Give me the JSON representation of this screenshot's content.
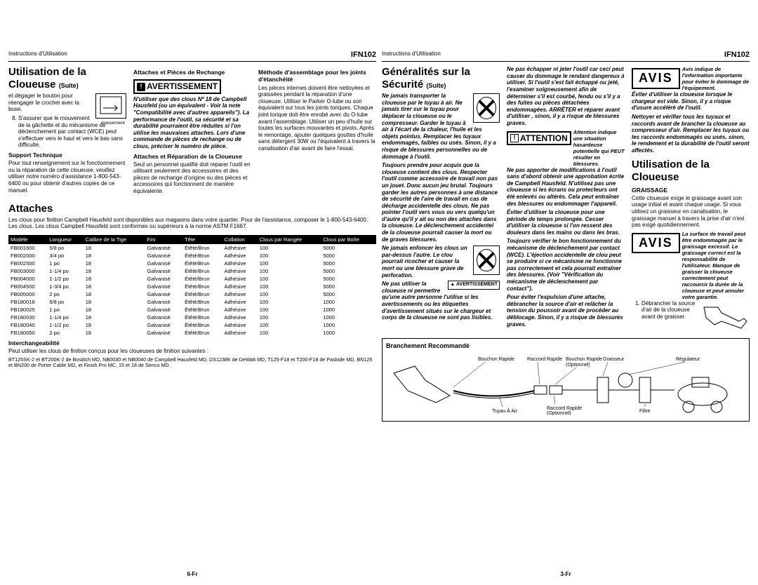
{
  "header": {
    "instructions_label": "Instructions d'Utilisation",
    "model": "IFN102"
  },
  "left_page": {
    "footer": "6-Fr",
    "section1_title": "Utilisation de la",
    "section1_title2": "Cloueuse",
    "suite": "(Suite)",
    "step7_part": "et dégager le bouton pour réengager le crochet avec la buse.",
    "step8": "S'assurer que le mouvement de la gâchette et du mécanisme de déclenchement par contact (WCE) peut s'effectuer vers le haut et vers le bas sans difficulté.",
    "movement_label": "mouvement",
    "support_title": "Support Technique",
    "support_body": "Pour tout renseignement sur le fonctionnement ou la réparation de cette cloueuse, veuillez utiliser notre numéro d'assistance 1-800-543-6400 ou pour obtenir d'autres copies de ce manuel.",
    "attaches_title": "Attaches et Pièces de Rechange",
    "avert_label": "AVERTISSEMENT",
    "attaches_warn": "N'utiliser que des clous Nº 18 de Campbell Hausfeld (ou un équivalent - Voir la note \"Compatibilité avec d'autres appareils\"). La performance de l'outil, sa sécurité et sa durabilité pourraient être réduites si l'on utilise les mauvaises attaches. Lors d'une commande de pièces de rechange ou de clous, préciser le numéro de pièce.",
    "repair_title": "Attaches et Réparation de la Cloueuse",
    "repair_body": "Seul un personnel qualifié doit réparer l'outil en utilisant seulement des accessoires et des pièces de rechange d'origine ou des pièces et accessoires qui fonctionnent de manière équivalente.",
    "methode_title": "Méthode d'assemblage pour les joints d'étanchéité",
    "methode_body": "Les pièces internes doivent être nettoyées et graissées pendant la réparation d'une cloueuse. Utiliser le Parker O-lube ou son équivalent sur tous les joints toriques. Chaque joint torique doit être enrobé avec du O-lube avant l'assemblage. Utiliser un peu d'huile sur toutes les surfaces mouvantes et pivots. Après le remontage, ajouter quelques gouttes d'huile sans détergent 30W ou l'équivalent à travers la canalisation d'air avant de faire l'essai.",
    "attaches_section": "Attaches",
    "attaches_intro": "Les clous pour finition Campbell Hausfeld sont disponibles aux magasins dans votre quartier. Pour de l'assistance, composer le 1-800-543-6400. Les clous. Les clous Campbell Hausfeld sont conformes ou supérieurs à la norme ASTM F1667.",
    "table": {
      "headers": [
        "Modèle",
        "Longueur",
        "Calibre de la Tige",
        "Fini",
        "Tête",
        "Collation",
        "Clous par Rangée",
        "Clous par Boîte"
      ],
      "rows": [
        [
          "FB001600",
          "5/8 po",
          "18",
          "Galvanisé",
          "Étêté/Brun",
          "Adhésive",
          "100",
          "5000"
        ],
        [
          "FB002000",
          "3/4 po",
          "18",
          "Galvanisé",
          "Étêté/Brun",
          "Adhésive",
          "100",
          "5000"
        ],
        [
          "FB002500",
          "1 po",
          "18",
          "Galvanisé",
          "Étêté/Brun",
          "Adhésive",
          "100",
          "5000"
        ],
        [
          "FB003000",
          "1-1/4 po",
          "18",
          "Galvanisé",
          "Étêté/Brun",
          "Adhésive",
          "100",
          "5000"
        ],
        [
          "FB004000",
          "1-1/2 po",
          "18",
          "Galvanisé",
          "Étêté/Brun",
          "Adhésive",
          "100",
          "5000"
        ],
        [
          "FB004500",
          "1-3/4 po",
          "18",
          "Galvanisé",
          "Étêté/Brun",
          "Adhésive",
          "100",
          "5000"
        ],
        [
          "FB005000",
          "2 po",
          "18",
          "Galvanisé",
          "Étêté/Brun",
          "Adhésive",
          "100",
          "5000"
        ],
        [
          "FB180016",
          "5/8 po",
          "18",
          "Galvanisé",
          "Étêté/Brun",
          "Adhésive",
          "100",
          "1000"
        ],
        [
          "FB180025",
          "1 po",
          "18",
          "Galvanisé",
          "Étêté/Brun",
          "Adhésive",
          "100",
          "1000"
        ],
        [
          "FB180030",
          "1-1/4 po",
          "18",
          "Galvanisé",
          "Étêté/Brun",
          "Adhésive",
          "100",
          "1000"
        ],
        [
          "FB180040",
          "1-1/2 po",
          "18",
          "Galvanisé",
          "Étêté/Brun",
          "Adhésive",
          "100",
          "1000"
        ],
        [
          "FB180050",
          "2 po",
          "18",
          "Galvanisé",
          "Étêté/Brun",
          "Adhésive",
          "100",
          "1000"
        ]
      ]
    },
    "interchange_title": "Interchangeabilité",
    "interchange_body": "Peut utiliser les clous de finition conçus pour les cloueuses de finition suivantes :",
    "interchange_list": "BT125SK-2 et BT200K-2 de Bostitch MD, NB0030 et NB0040 de Campbell Hausfeld MD, DS1238K de DeWalt MD, T125-F18 et T200-F18 de Paslode MD, BN125 et BN200 de Porter Cable MD, et Finish Pro MC, 15 et 18 de Senco MD."
  },
  "right_page": {
    "footer": "3-Fr",
    "section1_title": "Généralités sur la",
    "section1_title2": "Sécurité",
    "suite": "(Suite)",
    "warn1": "Ne jamais transporter la cloueuse par le tuyau à air. Ne jamais tirer sur le tuyau pour déplacer la cloueuse ou le compresseur. Garder le tuyau à air à l'écart de la chaleur, l'huile et les objets pointus. Remplacer les tuyaux endommagés, faibles ou usés. Sinon, il y a risque de blessures personnelles ou de dommage à l'outil.",
    "warn2": "Toujours prendre pour acquis que la cloueuse contient des clous. Respecter l'outil comme accessoire de travail non pas un jouet. Donc aucun jeu brutal. Toujours garder les autres personnes à une distance de sécurité de l'aire de travail en cas de décharge accidentelle des clous. Ne pas pointer l'outil vers vous ou vers quelqu'un d'autre qu'il y ait ou non des attaches dans la cloueuse. Le déclenchement accidentel de la cloueuse pourrait causer la mort ou de graves blessures.",
    "warn3": "Ne jamais enfoncer les clous un par-dessus l'autre. Le clou pourrait ricocher et causer la mort ou une blessure grave de perforation.",
    "warn4": "Ne pas utiliser la cloueuse ni permettre qu'une autre personne l'utilise si les avertissements ou les étiquettes d'avertissement situés sur le chargeur et corps de la cloueuse ne sont pas lisibles.",
    "avert_small_label": "AVERTISSEMENT",
    "warn5": "Ne pas échapper ni jeter l'outil car ceci peut causer du dommage le rendant dangereux à utiliser. Si l'outil s'est fait échappé ou jeté, l'examiner soigneusement afin de déterminer s'il est courbé, fendu ou s'il y a des fuites ou pièces détachées endommagées. ARRÊTER et réparer avant d'utiliser , sinon, il y a risque de blessures graves.",
    "attention_label": "ATTENTION",
    "attention_side": "Attention indique une situation hasardeuse potentielle qui PEUT résulter en blessures.",
    "att1": "Ne pas apporter de modifications à l'outil sans d'abord obtenir une approbation écrite de Campbell Hausfeld. N'utilisez pas une cloueuse si les écrans ou protecteurs ont été enlevés ou altérés. Cela peut entraîner des blessures ou endommager l'appareil.",
    "att2": "Éviter d'utiliser la cloueuse pour une période de temps prolongée. Cesser d'utiliser la cloueuse si l'on ressent des douleurs dans les mains ou dans les bras.",
    "att3": "Toujours vérifier le bon fonctionnement du mécanisme de déclenchement par contact (WCE). L'éjection accidentelle de clou peut se produire si ce mécanisme ne fonctionne pas correctement et cela pourrait entraîner des blessures. (Voir \"Vérification du mécanisme de déclenchement par contact\").",
    "att4": "Pour éviter l'expulsion d'une attache, débrancher la source d'air et relâcher la tension du poussoir avant de procéder au déblocage. Sinon, il y a risque de blessures graves.",
    "avis_label": "AVIS",
    "avis_side1": "Avis indique de l'information importante pour éviter le dommage de l'équipement.",
    "avis1": "Éviter d'utiliser la cloueuse lorsque le chargeur est vide. Sinon, il y a risque d'usure accéléré de l'outil.",
    "avis2": "Nettoyer et vérifier tous les tuyaux et raccords avant de brancher la cloueuse au compresseur d'air. Remplacer les tuyaux ou les raccords endommagés ou usés, sinon, le rendement et la durabilité de l'outil seront affectés.",
    "section2_title": "Utilisation de la",
    "section2_title2": "Cloueuse",
    "graissage_title": "GRAISSAGE",
    "graissage_body": "Cette cloueuse exige le graissage avant son usage initial et avant chaque usage. Si vous utilisez un graisseur en canalisation, le graissage manuel à travers la prise d'air n'est pas exigé quotidiennement.",
    "avis_side2": "La surface de travail peut être endommagée par le graissage excessif. Le graissage correct est la responsabilité de l'utilisateur. Manque de graisser la cloueuse correctement peut raccourcir la durée de la cloueuse et peut annuler votre garantie.",
    "step1": "Débrancher la source d'air de la cloueuse avant de graisser.",
    "hookup_title": "Branchement Recommandé",
    "hookup_labels": {
      "bouchon_rapide": "Bouchon Rapide",
      "raccord_rapide": "Raccord Rapide",
      "optionnel": "(Optionnel)",
      "graisseur": "Graisseur",
      "regulateur": "Régulateur",
      "tuyau": "Tuyau À Air",
      "filtre": "Filtre"
    }
  }
}
